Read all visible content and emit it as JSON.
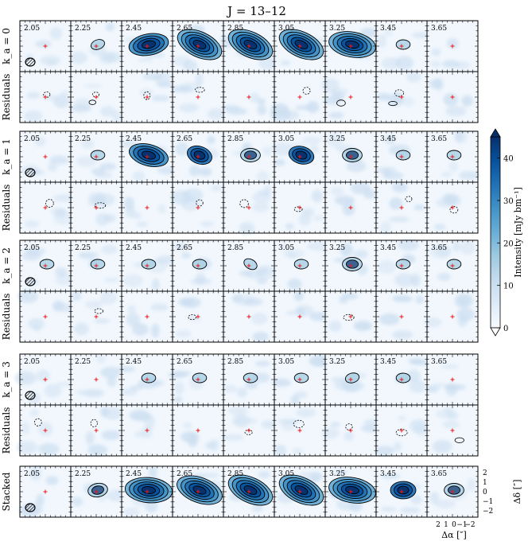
{
  "chart_data": {
    "type": "heatmap",
    "title": "J = 13–12",
    "velocities": [
      "2.05",
      "2.25",
      "2.45",
      "2.65",
      "2.85",
      "3.05",
      "3.25",
      "3.45",
      "3.65"
    ],
    "rows": [
      {
        "label": "k_a = 0",
        "kind": "data",
        "levels": [
          0,
          1,
          4,
          5,
          5,
          5,
          5,
          1,
          0
        ],
        "angle": [
          0,
          -20,
          -10,
          25,
          25,
          25,
          10,
          0,
          0
        ],
        "residual_contours": [
          0,
          0,
          1,
          1,
          1,
          1,
          1,
          1,
          1
        ]
      },
      {
        "label": "Residuals",
        "kind": "residuals"
      },
      {
        "label": "k_a = 1",
        "kind": "data",
        "levels": [
          0,
          1,
          4,
          3,
          2,
          3,
          2,
          1,
          1
        ],
        "angle": [
          0,
          0,
          15,
          20,
          0,
          15,
          0,
          0,
          0
        ]
      },
      {
        "label": "Residuals",
        "kind": "residuals"
      },
      {
        "label": "k_a = 2",
        "kind": "data",
        "levels": [
          1,
          1,
          1,
          1,
          1,
          1,
          2,
          1,
          1
        ],
        "angle": [
          0,
          0,
          0,
          0,
          30,
          0,
          0,
          0,
          0
        ]
      },
      {
        "label": "Residuals",
        "kind": "residuals"
      },
      {
        "label": "k_a = 3",
        "kind": "data",
        "levels": [
          0,
          0,
          1,
          1,
          1,
          1,
          1,
          1,
          0
        ],
        "angle": [
          0,
          0,
          0,
          0,
          0,
          0,
          -15,
          0,
          0
        ]
      },
      {
        "label": "Residuals",
        "kind": "residuals"
      },
      {
        "label": "Stacked",
        "kind": "data",
        "levels": [
          0,
          2,
          5,
          5,
          5,
          5,
          5,
          3,
          2
        ],
        "angle": [
          0,
          -10,
          5,
          20,
          25,
          25,
          10,
          0,
          0
        ]
      }
    ],
    "colorbar": {
      "label": "Intensity [mJy bm⁻¹]",
      "ticks": [
        0,
        10,
        20,
        30,
        40
      ],
      "range": [
        0,
        45
      ],
      "colormap": [
        "#f7fbff",
        "#deebf7",
        "#c6dbef",
        "#9ecae1",
        "#6baed6",
        "#4292c6",
        "#2171b5",
        "#08519c",
        "#08306b"
      ]
    },
    "axes": {
      "ylabel": "Δδ [″]",
      "yticks": [
        "2",
        "1",
        "0",
        "−1",
        "−2"
      ],
      "xlabel": "Δα [″]",
      "xticks": [
        "2",
        "1",
        "0",
        "−1",
        "−2"
      ]
    }
  }
}
